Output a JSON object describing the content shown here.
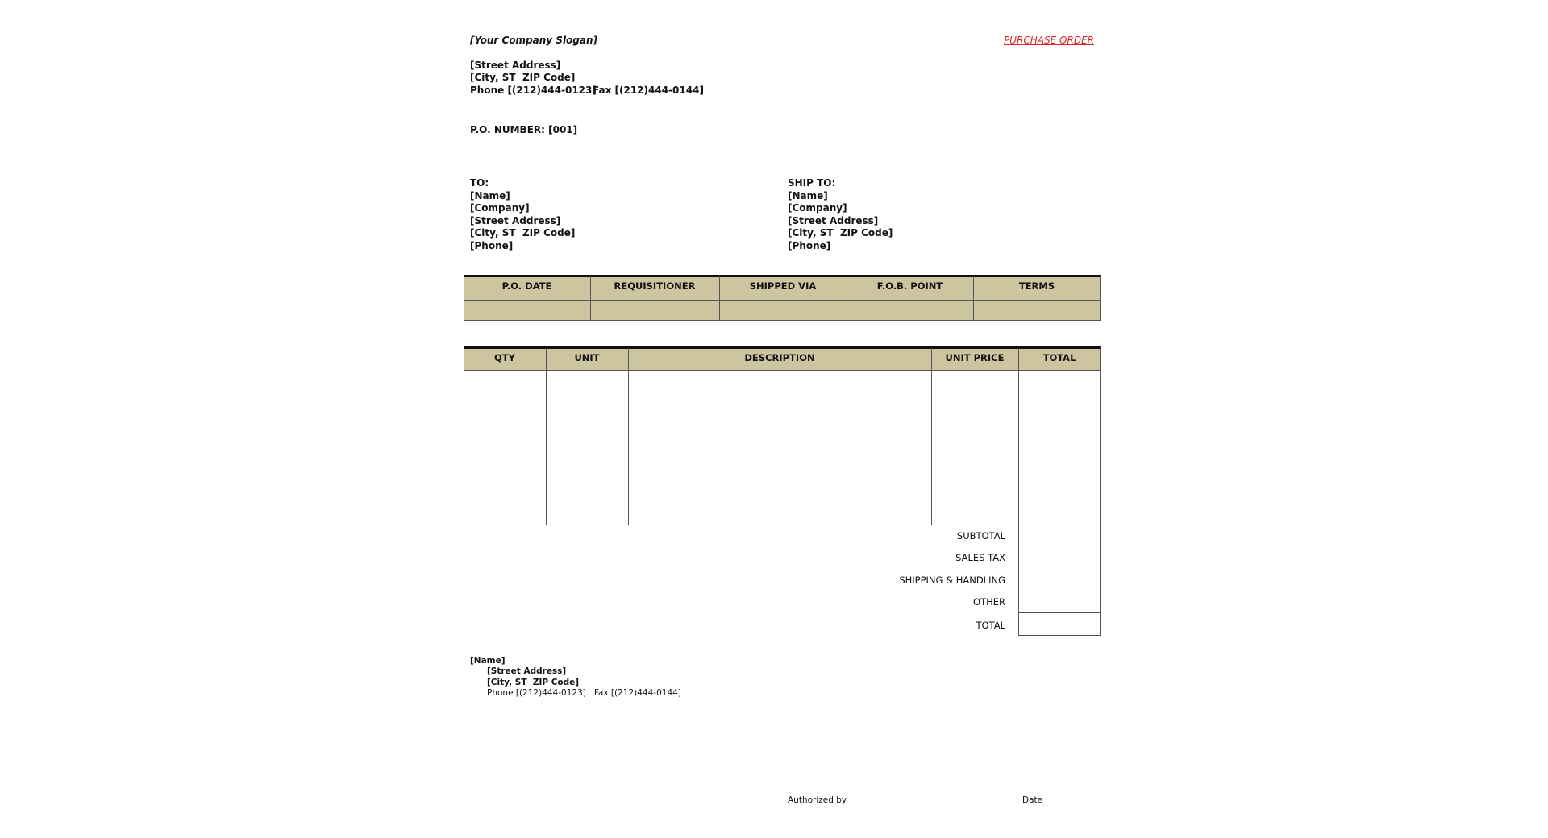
{
  "header": {
    "slogan": "[Your Company Slogan]",
    "title": "PURCHASE ORDER",
    "address": [
      "[Street Address]",
      "[City, ST  ZIP Code]"
    ],
    "phone": "Phone [(212)444-0123]",
    "fax": "Fax [(212)444-0144]"
  },
  "po_number": "P.O. NUMBER: [001]",
  "to": {
    "label": "TO:",
    "lines": [
      "[Name]",
      "[Company]",
      "[Street Address]",
      "[City, ST  ZIP Code]",
      "[Phone]"
    ]
  },
  "ship_to": {
    "label": "SHIP TO:",
    "lines": [
      "[Name]",
      "[Company]",
      "[Street Address]",
      "[City, ST  ZIP Code]",
      "[Phone]"
    ]
  },
  "info_table": {
    "headers": [
      "P.O. DATE",
      "REQUISITIONER",
      "SHIPPED VIA",
      "F.O.B. POINT",
      "TERMS"
    ]
  },
  "items_table": {
    "headers": [
      "QTY",
      "UNIT",
      "DESCRIPTION",
      "UNIT PRICE",
      "TOTAL"
    ]
  },
  "totals": [
    "SUBTOTAL",
    "SALES TAX",
    "SHIPPING & HANDLING",
    "OTHER",
    "TOTAL"
  ],
  "footer": {
    "name": "[Name]",
    "lines": [
      "[Street Address]",
      "[City, ST  ZIP Code]",
      "Phone [(212)444-0123]   Fax [(212)444-0144]"
    ]
  },
  "signature": {
    "authorized": "Authorized by",
    "date": "Date"
  }
}
